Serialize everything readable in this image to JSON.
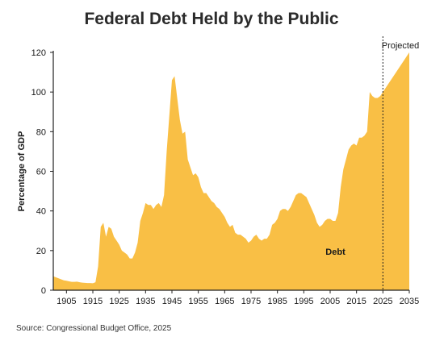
{
  "chart_data": {
    "type": "area",
    "title": "Federal Debt Held by the Public",
    "xlabel": "",
    "ylabel": "Percentage of GDP",
    "xlim": [
      1900,
      2035
    ],
    "ylim": [
      0,
      120
    ],
    "yticks": [
      0,
      20,
      40,
      60,
      80,
      100,
      120
    ],
    "xticks": [
      1905,
      1915,
      1925,
      1935,
      1945,
      1955,
      1965,
      1975,
      1985,
      1995,
      2005,
      2015,
      2025,
      2035
    ],
    "grid": false,
    "colors": {
      "area": "#f9bf45",
      "axis": "#222222",
      "divider": "#222222"
    },
    "series": [
      {
        "name": "Debt",
        "x": [
          1900,
          1901,
          1902,
          1903,
          1904,
          1905,
          1906,
          1907,
          1908,
          1909,
          1910,
          1911,
          1912,
          1913,
          1914,
          1915,
          1916,
          1917,
          1918,
          1919,
          1920,
          1921,
          1922,
          1923,
          1924,
          1925,
          1926,
          1927,
          1928,
          1929,
          1930,
          1931,
          1932,
          1933,
          1934,
          1935,
          1936,
          1937,
          1938,
          1939,
          1940,
          1941,
          1942,
          1943,
          1944,
          1945,
          1946,
          1947,
          1948,
          1949,
          1950,
          1951,
          1952,
          1953,
          1954,
          1955,
          1956,
          1957,
          1958,
          1959,
          1960,
          1961,
          1962,
          1963,
          1964,
          1965,
          1966,
          1967,
          1968,
          1969,
          1970,
          1971,
          1972,
          1973,
          1974,
          1975,
          1976,
          1977,
          1978,
          1979,
          1980,
          1981,
          1982,
          1983,
          1984,
          1985,
          1986,
          1987,
          1988,
          1989,
          1990,
          1991,
          1992,
          1993,
          1994,
          1995,
          1996,
          1997,
          1998,
          1999,
          2000,
          2001,
          2002,
          2003,
          2004,
          2005,
          2006,
          2007,
          2008,
          2009,
          2010,
          2011,
          2012,
          2013,
          2014,
          2015,
          2016,
          2017,
          2018,
          2019,
          2020,
          2021,
          2022,
          2023,
          2024,
          2025,
          2030,
          2035
        ],
        "values": [
          7,
          6.5,
          6,
          5.5,
          5,
          4.8,
          4.5,
          4.2,
          4.2,
          4.3,
          4,
          3.8,
          3.7,
          3.6,
          3.6,
          3.5,
          4,
          12,
          32,
          34,
          27,
          32,
          31,
          27,
          25,
          23,
          20,
          19,
          18,
          16,
          16,
          19,
          24,
          35,
          39,
          44,
          43,
          43,
          41,
          43,
          44,
          42,
          48,
          70,
          88,
          106,
          108,
          97,
          86,
          79,
          80,
          66,
          62,
          58,
          59,
          57,
          52,
          49,
          49,
          47,
          45,
          44,
          42,
          41,
          39,
          37,
          34,
          32,
          33,
          29,
          28,
          28,
          27,
          26,
          24,
          25,
          27,
          28,
          26,
          25,
          26,
          26,
          28,
          33,
          34,
          36,
          40,
          41,
          41,
          40,
          42,
          45,
          48,
          49,
          49,
          48,
          47,
          44,
          41,
          38,
          34,
          32,
          33,
          35,
          36,
          36,
          35,
          35,
          39,
          52,
          61,
          66,
          71,
          73,
          74,
          73,
          77,
          77,
          78,
          80,
          100,
          98,
          97,
          97,
          98,
          100,
          110,
          120
        ]
      }
    ],
    "annotations": {
      "series_label": "Debt",
      "projection_label": "Projected",
      "projection_start": 2025
    },
    "source": "Source: Congressional Budget Office, 2025"
  }
}
